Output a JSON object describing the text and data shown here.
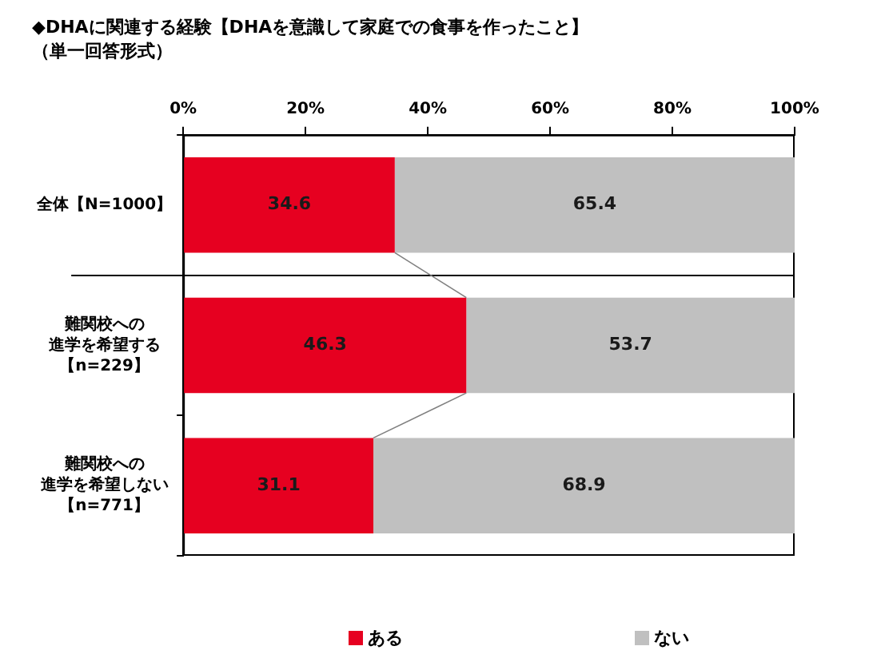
{
  "chart_data": {
    "type": "bar",
    "orientation": "horizontal",
    "stacked": true,
    "title": "◆DHAに関連する経験【DHAを意識して家庭での食事を作ったこと】",
    "subtitle": "（単一回答形式）",
    "categories": [
      "全体【N=1000】",
      "難関校への進学を希望する【n=229】",
      "難関校への進学を希望しない【n=771】"
    ],
    "series": [
      {
        "name": "ある",
        "color": "#e60020",
        "values": [
          34.6,
          46.3,
          31.1
        ]
      },
      {
        "name": "ない",
        "color": "#c0c0c0",
        "values": [
          65.4,
          53.7,
          68.9
        ]
      }
    ],
    "xlim": [
      0,
      100
    ],
    "xticks": [
      {
        "value": 0,
        "label": "0%"
      },
      {
        "value": 20,
        "label": "20%"
      },
      {
        "value": 40,
        "label": "40%"
      },
      {
        "value": 60,
        "label": "60%"
      },
      {
        "value": 80,
        "label": "80%"
      },
      {
        "value": 100,
        "label": "100%"
      }
    ],
    "data_labels": true,
    "legend": "bottom",
    "grid": false
  }
}
